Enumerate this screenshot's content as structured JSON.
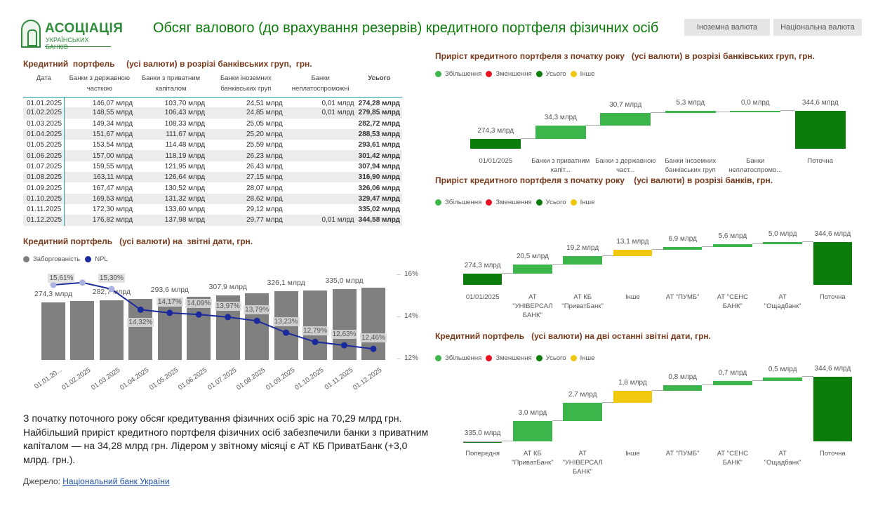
{
  "logo": {
    "line1": "АСОЦІАЦІЯ",
    "line2": "УКРАЇНСЬКИХ БАНКІВ"
  },
  "title": "Обсяг валового (до врахування резервів) кредитного портфеля фізичних осіб",
  "buttons": [
    "Іноземна валюта",
    "Національна валюта"
  ],
  "colors": {
    "increase": "#3cb54a",
    "decrease": "#e81123",
    "total": "#0a7d0a",
    "other": "#f2c80f",
    "debt": "#808080",
    "npl": "#1a2a9c",
    "title": "#7a3a1c"
  },
  "table": {
    "title": "Кредитний  портфель     (усі валюти) в розрізі банківських груп,  грн.",
    "headers": [
      "Дата",
      "Банки з державною часткою",
      "Банки з приватним капіталом",
      "Банки іноземних банківських груп",
      "Банки неплатоспроможні",
      "Усього"
    ],
    "rows": [
      [
        "01.01.2025",
        "146,07 млрд",
        "103,70 млрд",
        "24,51 млрд",
        "0,01 млрд",
        "274,28 млрд"
      ],
      [
        "01.02.2025",
        "148,55 млрд",
        "106,43 млрд",
        "24,85 млрд",
        "0,01 млрд",
        "279,85 млрд"
      ],
      [
        "01.03.2025",
        "149,34 млрд",
        "108,33 млрд",
        "25,05 млрд",
        "",
        "282,72 млрд"
      ],
      [
        "01.04.2025",
        "151,67 млрд",
        "111,67 млрд",
        "25,20 млрд",
        "",
        "288,53 млрд"
      ],
      [
        "01.05.2025",
        "153,54 млрд",
        "114,48 млрд",
        "25,59 млрд",
        "",
        "293,61 млрд"
      ],
      [
        "01.06.2025",
        "157,00 млрд",
        "118,19 млрд",
        "26,23 млрд",
        "",
        "301,42 млрд"
      ],
      [
        "01.07.2025",
        "159,55 млрд",
        "121,95 млрд",
        "26,43 млрд",
        "",
        "307,94 млрд"
      ],
      [
        "01.08.2025",
        "163,11 млрд",
        "126,64 млрд",
        "27,15 млрд",
        "",
        "316,90 млрд"
      ],
      [
        "01.09.2025",
        "167,47 млрд",
        "130,52 млрд",
        "28,07 млрд",
        "",
        "326,06 млрд"
      ],
      [
        "01.10.2025",
        "169,53 млрд",
        "131,32 млрд",
        "28,62 млрд",
        "",
        "329,47 млрд"
      ],
      [
        "01.11.2025",
        "172,30 млрд",
        "133,60 млрд",
        "29,12 млрд",
        "",
        "335,02 млрд"
      ],
      [
        "01.12.2025",
        "176,82 млрд",
        "137,98 млрд",
        "29,77 млрд",
        "0,01 млрд",
        "344,58 млрд"
      ]
    ]
  },
  "legend_waterfall": [
    "Збільшення",
    "Зменшення",
    "Усього",
    "Інше"
  ],
  "chart_data": [
    {
      "type": "bar+line",
      "title": "Кредитний портфель   (усі валюти) на  звітні дати, грн.",
      "legend": [
        "Заборгованість",
        "NPL"
      ],
      "categories": [
        "01.01.20...",
        "01.02.2025",
        "01.03.2025",
        "01.04.2025",
        "01.05.2025",
        "01.06.2025",
        "01.07.2025",
        "01.08.2025",
        "01.09.2025",
        "01.10.2025",
        "01.11.2025",
        "01.12.2025"
      ],
      "bar_values": [
        274.28,
        279.85,
        282.72,
        288.53,
        293.61,
        301.42,
        307.94,
        316.9,
        326.06,
        329.47,
        335.02,
        344.58
      ],
      "bar_labels": [
        "274,3 млрд",
        "",
        "282,7 млрд",
        "",
        "293,6 млрд",
        "",
        "307,9 млрд",
        "",
        "326,1 млрд",
        "",
        "335,0 млрд",
        ""
      ],
      "npl_values": [
        15.5,
        15.61,
        15.3,
        14.32,
        14.17,
        14.09,
        13.97,
        13.79,
        13.23,
        12.79,
        12.63,
        12.46
      ],
      "npl_labels": [
        "",
        "15,61%",
        "15,30%",
        "14,32%",
        "14,17%",
        "14,09%",
        "13,97%",
        "13,79%",
        "13,23%",
        "12,79%",
        "12,63%",
        "12,46%"
      ],
      "y2_ticks": [
        "16%",
        "14%",
        "12%"
      ],
      "y2lim": [
        12,
        16
      ]
    },
    {
      "type": "waterfall",
      "title": "Приріст кредитного портфеля з початку року   (усі валюти) в розрізі банківських груп, грн.",
      "categories": [
        "01/01/2025",
        "Банки з приватним капіт...",
        "Банки з державною част...",
        "Банки іноземних банківських груп",
        "Банки неплатоспромо...",
        "Поточна"
      ],
      "values": [
        274.3,
        34.3,
        30.7,
        5.3,
        0.0,
        344.6
      ],
      "kinds": [
        "total",
        "increase",
        "increase",
        "increase",
        "increase",
        "total"
      ],
      "labels": [
        "274,3 млрд",
        "34,3 млрд",
        "30,7 млрд",
        "5,3 млрд",
        "0,0 млрд",
        "344,6 млрд"
      ],
      "ymin": 250
    },
    {
      "type": "waterfall",
      "title": "Приріст кредитного портфеля з початку року    (усі валюти) в розрізі банків, грн.",
      "categories": [
        "01/01/2025",
        "АТ \"УНІВЕРСАЛ БАНК\"",
        "АТ КБ \"ПриватБанк\"",
        "Інше",
        "АТ \"ПУМБ\"",
        "АТ \"СЕНС БАНК\"",
        "АТ \"Ощадбанк\"",
        "Поточна"
      ],
      "values": [
        274.3,
        20.5,
        19.2,
        13.1,
        6.9,
        5.6,
        5.0,
        344.6
      ],
      "kinds": [
        "total",
        "increase",
        "increase",
        "other",
        "increase",
        "increase",
        "increase",
        "total"
      ],
      "labels": [
        "274,3 млрд",
        "20,5 млрд",
        "19,2 млрд",
        "13,1 млрд",
        "6,9 млрд",
        "5,6 млрд",
        "5,0 млрд",
        "344,6 млрд"
      ],
      "ymin": 249
    },
    {
      "type": "waterfall",
      "title": "Кредитний портфель   (усі валюти) на дві останні звітні дати, грн.",
      "categories": [
        "Попередня",
        "АТ КБ \"ПриватБанк\"",
        "АТ \"УНІВЕРСАЛ БАНК\"",
        "Інше",
        "АТ \"ПУМБ\"",
        "АТ \"СЕНС БАНК\"",
        "АТ \"Ощадбанк\"",
        "Поточна"
      ],
      "values": [
        335.0,
        3.0,
        2.7,
        1.8,
        0.8,
        0.7,
        0.5,
        344.6
      ],
      "kinds": [
        "total",
        "increase",
        "increase",
        "other",
        "increase",
        "increase",
        "increase",
        "total"
      ],
      "labels": [
        "335,0 млрд",
        "3,0 млрд",
        "2,7 млрд",
        "1,8 млрд",
        "0,8 млрд",
        "0,7 млрд",
        "0,5 млрд",
        "344,6 млрд"
      ],
      "ymin": 335
    }
  ],
  "summary": "З початку поточного року обсяг кредитування фізичних осіб зріс  на 70,29 млрд грн. Найбільший приріст кредитного портфеля фізичних осіб забезпечили банки з приватним капіталом — на 34,28 млрд грн.  Лідером у звітному  місяці є  АТ КБ ПриватБанк (+3,0 млрд. грн.).",
  "source": {
    "label": "Джерело: ",
    "link": "Національний банк України"
  }
}
